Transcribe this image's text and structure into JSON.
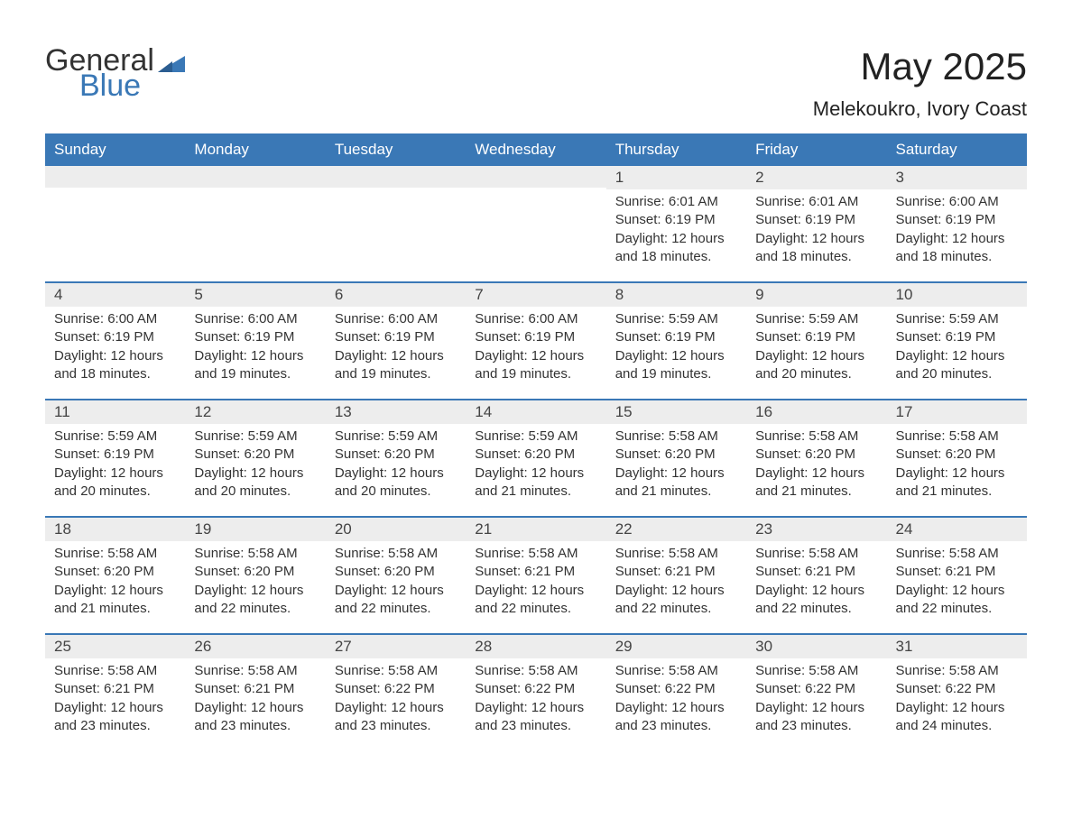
{
  "logo": {
    "text1": "General",
    "text2": "Blue"
  },
  "title": "May 2025",
  "location": "Melekoukro, Ivory Coast",
  "colors": {
    "header_bg": "#3a78b6",
    "header_text": "#ffffff",
    "daynum_bg": "#ededed",
    "rule": "#3a78b6",
    "body_text": "#333333"
  },
  "weekdays": [
    "Sunday",
    "Monday",
    "Tuesday",
    "Wednesday",
    "Thursday",
    "Friday",
    "Saturday"
  ],
  "weeks": [
    [
      {
        "blank": true
      },
      {
        "blank": true
      },
      {
        "blank": true
      },
      {
        "blank": true
      },
      {
        "n": "1",
        "sr": "6:01 AM",
        "ss": "6:19 PM",
        "dl": "12 hours and 18 minutes."
      },
      {
        "n": "2",
        "sr": "6:01 AM",
        "ss": "6:19 PM",
        "dl": "12 hours and 18 minutes."
      },
      {
        "n": "3",
        "sr": "6:00 AM",
        "ss": "6:19 PM",
        "dl": "12 hours and 18 minutes."
      }
    ],
    [
      {
        "n": "4",
        "sr": "6:00 AM",
        "ss": "6:19 PM",
        "dl": "12 hours and 18 minutes."
      },
      {
        "n": "5",
        "sr": "6:00 AM",
        "ss": "6:19 PM",
        "dl": "12 hours and 19 minutes."
      },
      {
        "n": "6",
        "sr": "6:00 AM",
        "ss": "6:19 PM",
        "dl": "12 hours and 19 minutes."
      },
      {
        "n": "7",
        "sr": "6:00 AM",
        "ss": "6:19 PM",
        "dl": "12 hours and 19 minutes."
      },
      {
        "n": "8",
        "sr": "5:59 AM",
        "ss": "6:19 PM",
        "dl": "12 hours and 19 minutes."
      },
      {
        "n": "9",
        "sr": "5:59 AM",
        "ss": "6:19 PM",
        "dl": "12 hours and 20 minutes."
      },
      {
        "n": "10",
        "sr": "5:59 AM",
        "ss": "6:19 PM",
        "dl": "12 hours and 20 minutes."
      }
    ],
    [
      {
        "n": "11",
        "sr": "5:59 AM",
        "ss": "6:19 PM",
        "dl": "12 hours and 20 minutes."
      },
      {
        "n": "12",
        "sr": "5:59 AM",
        "ss": "6:20 PM",
        "dl": "12 hours and 20 minutes."
      },
      {
        "n": "13",
        "sr": "5:59 AM",
        "ss": "6:20 PM",
        "dl": "12 hours and 20 minutes."
      },
      {
        "n": "14",
        "sr": "5:59 AM",
        "ss": "6:20 PM",
        "dl": "12 hours and 21 minutes."
      },
      {
        "n": "15",
        "sr": "5:58 AM",
        "ss": "6:20 PM",
        "dl": "12 hours and 21 minutes."
      },
      {
        "n": "16",
        "sr": "5:58 AM",
        "ss": "6:20 PM",
        "dl": "12 hours and 21 minutes."
      },
      {
        "n": "17",
        "sr": "5:58 AM",
        "ss": "6:20 PM",
        "dl": "12 hours and 21 minutes."
      }
    ],
    [
      {
        "n": "18",
        "sr": "5:58 AM",
        "ss": "6:20 PM",
        "dl": "12 hours and 21 minutes."
      },
      {
        "n": "19",
        "sr": "5:58 AM",
        "ss": "6:20 PM",
        "dl": "12 hours and 22 minutes."
      },
      {
        "n": "20",
        "sr": "5:58 AM",
        "ss": "6:20 PM",
        "dl": "12 hours and 22 minutes."
      },
      {
        "n": "21",
        "sr": "5:58 AM",
        "ss": "6:21 PM",
        "dl": "12 hours and 22 minutes."
      },
      {
        "n": "22",
        "sr": "5:58 AM",
        "ss": "6:21 PM",
        "dl": "12 hours and 22 minutes."
      },
      {
        "n": "23",
        "sr": "5:58 AM",
        "ss": "6:21 PM",
        "dl": "12 hours and 22 minutes."
      },
      {
        "n": "24",
        "sr": "5:58 AM",
        "ss": "6:21 PM",
        "dl": "12 hours and 22 minutes."
      }
    ],
    [
      {
        "n": "25",
        "sr": "5:58 AM",
        "ss": "6:21 PM",
        "dl": "12 hours and 23 minutes."
      },
      {
        "n": "26",
        "sr": "5:58 AM",
        "ss": "6:21 PM",
        "dl": "12 hours and 23 minutes."
      },
      {
        "n": "27",
        "sr": "5:58 AM",
        "ss": "6:22 PM",
        "dl": "12 hours and 23 minutes."
      },
      {
        "n": "28",
        "sr": "5:58 AM",
        "ss": "6:22 PM",
        "dl": "12 hours and 23 minutes."
      },
      {
        "n": "29",
        "sr": "5:58 AM",
        "ss": "6:22 PM",
        "dl": "12 hours and 23 minutes."
      },
      {
        "n": "30",
        "sr": "5:58 AM",
        "ss": "6:22 PM",
        "dl": "12 hours and 23 minutes."
      },
      {
        "n": "31",
        "sr": "5:58 AM",
        "ss": "6:22 PM",
        "dl": "12 hours and 24 minutes."
      }
    ]
  ],
  "labels": {
    "sunrise": "Sunrise: ",
    "sunset": "Sunset: ",
    "daylight": "Daylight: "
  }
}
